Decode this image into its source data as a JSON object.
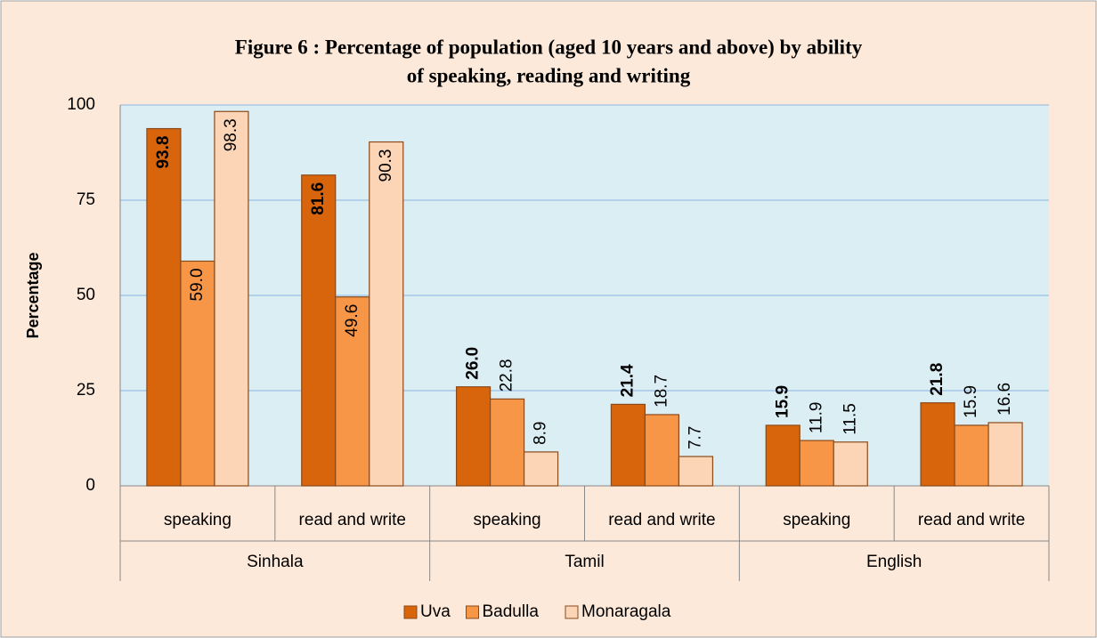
{
  "chart_data": {
    "type": "bar",
    "title": [
      "Figure 6 : Percentage of population (aged 10 years and above) by ability",
      "of speaking, reading and writing"
    ],
    "y_label": "Percentage",
    "categories": [
      "speaking",
      "read and write",
      "speaking",
      "read and write",
      "speaking",
      "read and write"
    ],
    "groups": [
      "Sinhala",
      "Tamil",
      "English"
    ],
    "series": [
      {
        "name": "Uva",
        "color": "#d8640c",
        "values": [
          93.8,
          81.6,
          26.0,
          21.4,
          15.9,
          21.8
        ],
        "value_labels": [
          "93.8",
          "81.6",
          "26.0",
          "21.4",
          "15.9",
          "21.8"
        ]
      },
      {
        "name": "Badulla",
        "color": "#f79646",
        "values": [
          59.0,
          49.6,
          22.8,
          18.7,
          11.9,
          15.9
        ],
        "value_labels": [
          "59.0",
          "49.6",
          "22.8",
          "18.7",
          "11.9",
          "15.9"
        ]
      },
      {
        "name": "Monaragala",
        "color": "#fbd5b5",
        "values": [
          98.3,
          90.3,
          8.9,
          7.7,
          11.5,
          16.6
        ],
        "value_labels": [
          "98.3",
          "90.3",
          "8.9",
          "7.7",
          "11.5",
          "16.6"
        ]
      }
    ],
    "ylim": [
      0,
      100
    ],
    "yticks": [
      0,
      25,
      50,
      75,
      100
    ],
    "grid": true,
    "legend": "bottom"
  }
}
